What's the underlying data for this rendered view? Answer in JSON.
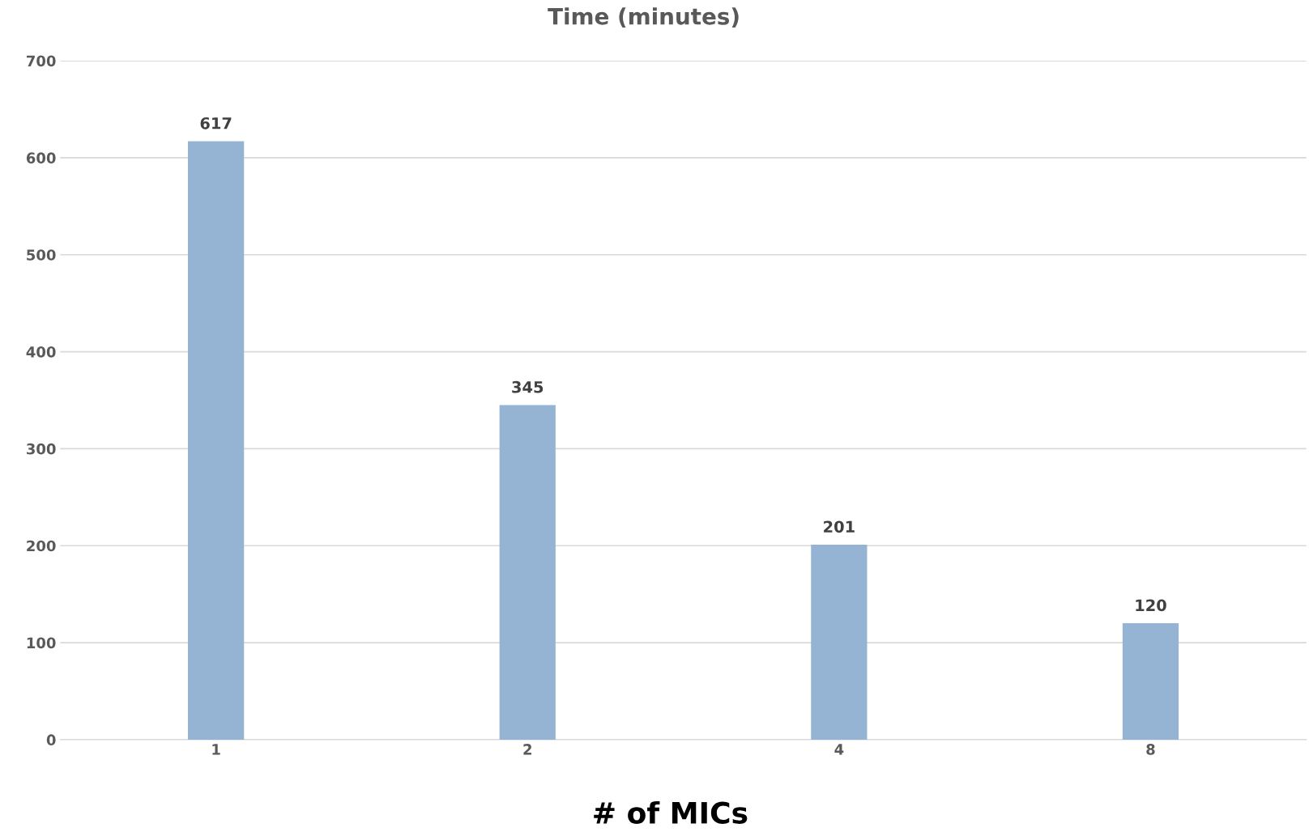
{
  "chart_data": {
    "type": "bar",
    "title": "Time (minutes)",
    "xlabel": "# of MICs",
    "categories": [
      "1",
      "2",
      "4",
      "8"
    ],
    "values": [
      617,
      345,
      201,
      120
    ],
    "color": "#95b3d3",
    "ylim": [
      0,
      700
    ],
    "yticks": [
      0,
      100,
      200,
      300,
      400,
      500,
      600,
      700
    ],
    "grid": "y",
    "data_labels": true
  }
}
